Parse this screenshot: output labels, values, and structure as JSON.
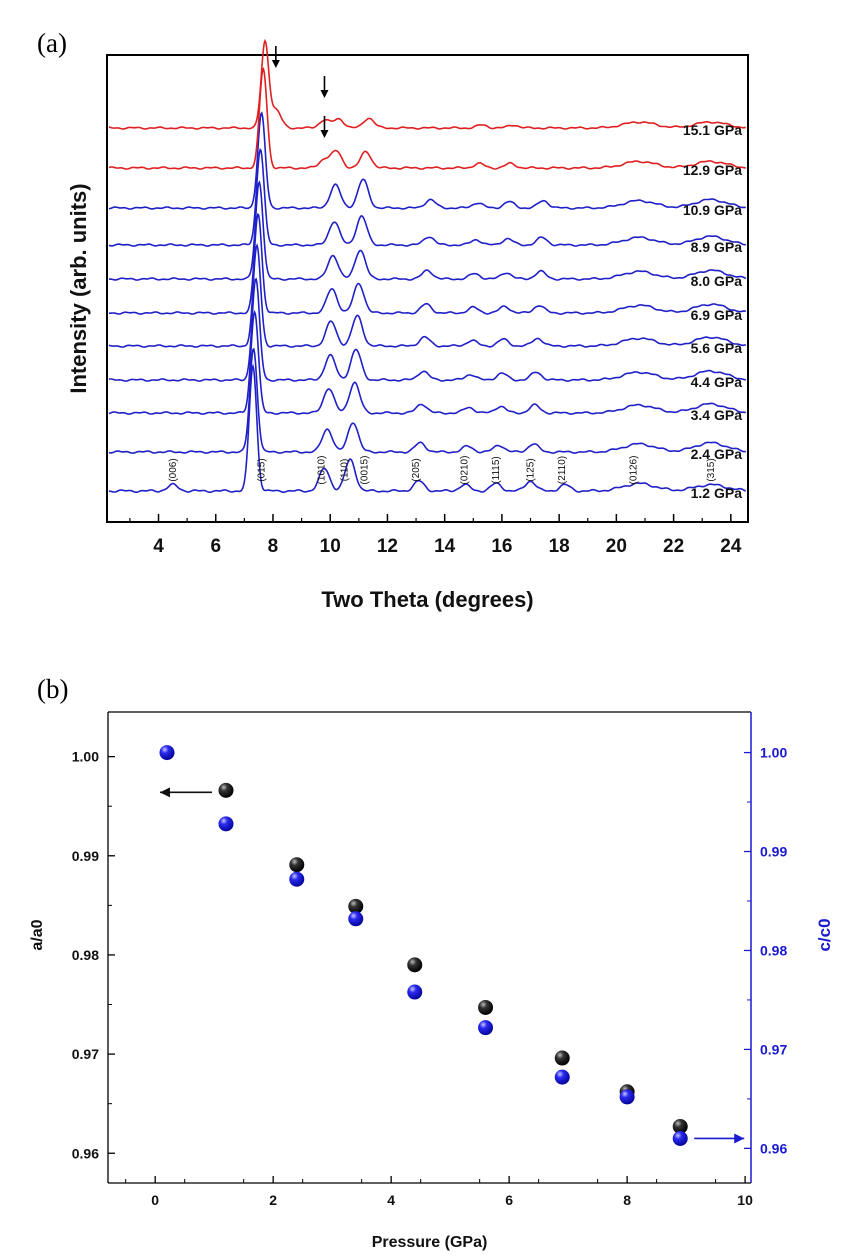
{
  "panel_labels": {
    "a": "(a)",
    "b": "(b)"
  },
  "colors": {
    "low_pressure": "#2020c8",
    "high_pressure": "#e02020",
    "a_marker": "#111111",
    "c_marker": "#1a1ad0",
    "right_axis": "#1a1ad0"
  },
  "chart_data": [
    {
      "type": "line",
      "panel": "(a)",
      "xlabel": "Two Theta (degrees)",
      "ylabel": "Intensity (arb. units)",
      "xlim": [
        2.2,
        24.6
      ],
      "x_ticks": [
        4,
        6,
        8,
        10,
        12,
        14,
        16,
        18,
        20,
        22,
        24
      ],
      "legend": "none; pressure labels at right end of each curve",
      "series": [
        {
          "name": "1.2 GPa",
          "color": "blue",
          "peaks": [
            [
              4.5,
              0.05
            ],
            [
              7.3,
              1.0
            ],
            [
              9.8,
              0.18
            ],
            [
              10.7,
              0.25
            ],
            [
              13.1,
              0.08
            ],
            [
              14.7,
              0.05
            ],
            [
              15.8,
              0.06
            ],
            [
              17.0,
              0.08
            ],
            [
              18.2,
              0.05
            ],
            [
              20.8,
              0.06
            ],
            [
              23.3,
              0.05
            ]
          ]
        },
        {
          "name": "2.4 GPa",
          "color": "blue",
          "peaks": [
            [
              7.32,
              0.9
            ],
            [
              9.9,
              0.2
            ],
            [
              10.8,
              0.26
            ],
            [
              13.15,
              0.08
            ],
            [
              14.8,
              0.05
            ],
            [
              15.9,
              0.06
            ],
            [
              17.1,
              0.07
            ],
            [
              20.8,
              0.07
            ],
            [
              23.3,
              0.08
            ]
          ]
        },
        {
          "name": "3.4 GPa",
          "color": "blue",
          "peaks": [
            [
              7.36,
              0.9
            ],
            [
              9.95,
              0.22
            ],
            [
              10.85,
              0.27
            ],
            [
              13.2,
              0.08
            ],
            [
              14.85,
              0.05
            ],
            [
              15.95,
              0.06
            ],
            [
              17.15,
              0.07
            ],
            [
              20.8,
              0.07
            ],
            [
              23.3,
              0.08
            ]
          ]
        },
        {
          "name": "4.4 GPa",
          "color": "blue",
          "peaks": [
            [
              7.4,
              0.9
            ],
            [
              10.0,
              0.22
            ],
            [
              10.9,
              0.27
            ],
            [
              13.25,
              0.08
            ],
            [
              14.9,
              0.05
            ],
            [
              16.0,
              0.06
            ],
            [
              17.2,
              0.07
            ],
            [
              20.8,
              0.07
            ],
            [
              23.3,
              0.08
            ]
          ]
        },
        {
          "name": "5.6 GPa",
          "color": "blue",
          "peaks": [
            [
              7.44,
              0.9
            ],
            [
              10.03,
              0.22
            ],
            [
              10.95,
              0.27
            ],
            [
              13.3,
              0.08
            ],
            [
              14.95,
              0.05
            ],
            [
              16.05,
              0.06
            ],
            [
              17.25,
              0.07
            ],
            [
              20.8,
              0.07
            ],
            [
              23.3,
              0.08
            ]
          ]
        },
        {
          "name": "6.9 GPa",
          "color": "blue",
          "peaks": [
            [
              7.48,
              0.9
            ],
            [
              10.06,
              0.22
            ],
            [
              11.0,
              0.27
            ],
            [
              13.35,
              0.08
            ],
            [
              15.0,
              0.05
            ],
            [
              16.1,
              0.06
            ],
            [
              17.3,
              0.07
            ],
            [
              20.8,
              0.07
            ],
            [
              23.3,
              0.08
            ]
          ]
        },
        {
          "name": "8.0 GPa",
          "color": "blue",
          "peaks": [
            [
              7.52,
              0.9
            ],
            [
              10.1,
              0.22
            ],
            [
              11.05,
              0.27
            ],
            [
              13.4,
              0.08
            ],
            [
              15.05,
              0.05
            ],
            [
              16.15,
              0.06
            ],
            [
              17.35,
              0.07
            ],
            [
              20.8,
              0.07
            ],
            [
              23.3,
              0.08
            ]
          ]
        },
        {
          "name": "8.9 GPa",
          "color": "blue",
          "peaks": [
            [
              7.56,
              0.9
            ],
            [
              10.14,
              0.22
            ],
            [
              11.1,
              0.27
            ],
            [
              13.45,
              0.08
            ],
            [
              15.1,
              0.05
            ],
            [
              16.2,
              0.06
            ],
            [
              17.4,
              0.07
            ],
            [
              20.8,
              0.07
            ],
            [
              23.3,
              0.08
            ]
          ]
        },
        {
          "name": "10.9 GPa",
          "color": "blue",
          "peaks": [
            [
              7.6,
              0.9
            ],
            [
              10.18,
              0.22
            ],
            [
              11.15,
              0.27
            ],
            [
              13.5,
              0.08
            ],
            [
              15.15,
              0.05
            ],
            [
              16.25,
              0.06
            ],
            [
              17.45,
              0.07
            ],
            [
              20.8,
              0.07
            ],
            [
              23.3,
              0.08
            ]
          ]
        },
        {
          "name": "12.9 GPa",
          "color": "red",
          "peaks": [
            [
              7.66,
              0.9
            ],
            [
              9.8,
              0.08
            ],
            [
              10.22,
              0.15
            ],
            [
              11.25,
              0.15
            ],
            [
              15.2,
              0.04
            ],
            [
              16.3,
              0.04
            ],
            [
              20.8,
              0.06
            ],
            [
              23.3,
              0.06
            ]
          ]
        },
        {
          "name": "15.1 GPa",
          "color": "red",
          "peaks": [
            [
              7.72,
              0.85
            ],
            [
              8.1,
              0.18
            ],
            [
              9.8,
              0.08
            ],
            [
              10.3,
              0.09
            ],
            [
              11.35,
              0.1
            ],
            [
              15.3,
              0.03
            ],
            [
              16.4,
              0.03
            ],
            [
              20.8,
              0.06
            ],
            [
              23.3,
              0.06
            ]
          ]
        }
      ],
      "peak_labels": [
        {
          "text": "(006)",
          "x": 4.5
        },
        {
          "text": "(015)",
          "x": 7.6
        },
        {
          "text": "(1010)",
          "x": 9.7
        },
        {
          "text": "(110)",
          "x": 10.5
        },
        {
          "text": "(0015)",
          "x": 11.2
        },
        {
          "text": "(205)",
          "x": 13.0
        },
        {
          "text": "(0210)",
          "x": 14.7
        },
        {
          "text": "(1115)",
          "x": 15.8
        },
        {
          "text": "(125)",
          "x": 17.0
        },
        {
          "text": "(2110)",
          "x": 18.1
        },
        {
          "text": "(0126)",
          "x": 20.6
        },
        {
          "text": "(315)",
          "x": 23.3
        }
      ],
      "arrows": [
        {
          "curve": "15.1 GPa",
          "x": 8.1
        },
        {
          "curve": "15.1 GPa",
          "x": 9.8
        },
        {
          "curve": "12.9 GPa",
          "x": 9.8
        }
      ]
    },
    {
      "type": "scatter",
      "panel": "(b)",
      "xlabel": "Pressure (GPa)",
      "xlim": [
        -0.8,
        10.1
      ],
      "x_ticks": [
        0,
        2,
        4,
        6,
        8,
        10
      ],
      "ylabel_left": "a/a0",
      "ylabel_right": "c/c0",
      "ylim_left": [
        0.957,
        1.0045
      ],
      "ylim_right": [
        0.9565,
        1.0041
      ],
      "y_ticks_left": [
        "0.96",
        "0.97",
        "0.98",
        "0.99",
        "1.00"
      ],
      "y_ticks_right": [
        "0.96",
        "0.97",
        "0.98",
        "0.99",
        "1.00"
      ],
      "series": [
        {
          "name": "a/a0",
          "axis": "left",
          "color": "black",
          "x": [
            1.2,
            2.4,
            3.4,
            4.4,
            5.6,
            6.9,
            8.0,
            8.9
          ],
          "y": [
            0.9966,
            0.9891,
            0.9849,
            0.979,
            0.9747,
            0.9696,
            0.9662,
            0.9627
          ]
        },
        {
          "name": "c/c0",
          "axis": "right",
          "color": "blue",
          "x": [
            0.2,
            1.2,
            2.4,
            3.4,
            4.4,
            5.6,
            6.9,
            8.0,
            8.9
          ],
          "y": [
            1.0,
            0.9928,
            0.9872,
            0.9832,
            0.9758,
            0.9722,
            0.9672,
            0.9652,
            0.961
          ]
        }
      ],
      "arrows": [
        {
          "series": "a/a0",
          "direction": "left"
        },
        {
          "series": "c/c0",
          "direction": "right"
        }
      ]
    }
  ]
}
